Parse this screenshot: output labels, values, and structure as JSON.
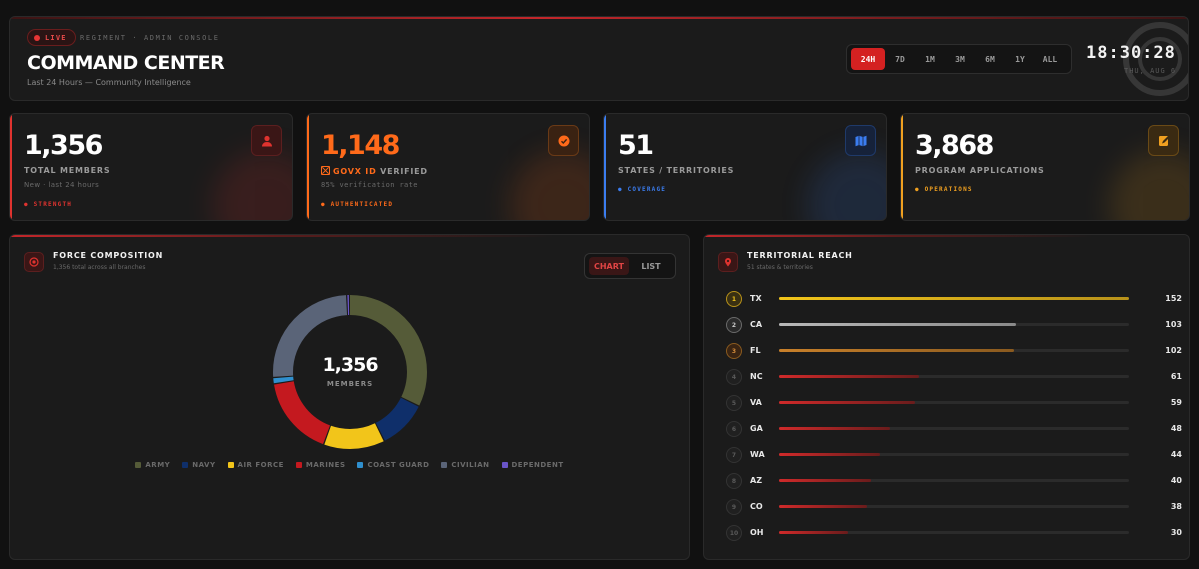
{
  "header": {
    "live_label": "LIVE",
    "breadcrumb": "REGIMENT · ADMIN CONSOLE",
    "title": "COMMAND CENTER",
    "subtitle": "Last 24 Hours — Community Intelligence",
    "ranges": [
      "24H",
      "7D",
      "1M",
      "3M",
      "6M",
      "1Y",
      "ALL"
    ],
    "active_range": "24H",
    "clock": "18:30:28",
    "date": "THU, AUG 6"
  },
  "stats": [
    {
      "value": "1,356",
      "label": "TOTAL MEMBERS",
      "sub": "New · last 24 hours",
      "tag": "● STRENGTH",
      "color": "#e0332f",
      "icon": "users-icon"
    },
    {
      "value": "1,148",
      "label_brand": "GOVX ID",
      "label": "VERIFIED",
      "sub": "85% verification rate",
      "tag": "● AUTHENTICATED",
      "color": "#ff6a1a",
      "icon": "verified-badge-icon"
    },
    {
      "value": "51",
      "label": "STATES / TERRITORIES",
      "sub": "",
      "tag": "● COVERAGE",
      "color": "#3b7df0",
      "icon": "map-icon"
    },
    {
      "value": "3,868",
      "label": "PROGRAM APPLICATIONS",
      "sub": "",
      "tag": "● OPERATIONS",
      "color": "#f0a020",
      "icon": "edit-doc-icon"
    }
  ],
  "force": {
    "title": "FORCE COMPOSITION",
    "subtitle": "1,356 total across all branches",
    "toggle": [
      "CHART",
      "LIST"
    ],
    "center_value": "1,356",
    "center_label": "MEMBERS",
    "legend": [
      {
        "name": "ARMY",
        "color": "#555b38"
      },
      {
        "name": "NAVY",
        "color": "#0f2f6a"
      },
      {
        "name": "AIR FORCE",
        "color": "#f2c51a"
      },
      {
        "name": "MARINES",
        "color": "#c4191f"
      },
      {
        "name": "COAST GUARD",
        "color": "#2f8fce"
      },
      {
        "name": "CIVILIAN",
        "color": "#5a6478"
      },
      {
        "name": "DEPENDENT",
        "color": "#6a55c8"
      }
    ]
  },
  "chart_data": {
    "type": "pie",
    "title": "",
    "categories": [
      "ARMY",
      "NAVY",
      "AIR FORCE",
      "MARINES",
      "COAST GUARD",
      "CIVILIAN",
      "DEPENDENT"
    ],
    "values": [
      440,
      140,
      175,
      230,
      18,
      345,
      8
    ],
    "donut": true
  },
  "territory": {
    "title": "TERRITORIAL REACH",
    "subtitle": "51 states & territories",
    "max": 152,
    "rows": [
      {
        "rank": "1",
        "state": "TX",
        "count": 152,
        "style": "gold"
      },
      {
        "rank": "2",
        "state": "CA",
        "count": 103,
        "style": "silver"
      },
      {
        "rank": "3",
        "state": "FL",
        "count": 102,
        "style": "bronze"
      },
      {
        "rank": "4",
        "state": "NC",
        "count": 61,
        "style": "red"
      },
      {
        "rank": "5",
        "state": "VA",
        "count": 59,
        "style": "red"
      },
      {
        "rank": "6",
        "state": "GA",
        "count": 48,
        "style": "red"
      },
      {
        "rank": "7",
        "state": "WA",
        "count": 44,
        "style": "red"
      },
      {
        "rank": "8",
        "state": "AZ",
        "count": 40,
        "style": "red"
      },
      {
        "rank": "9",
        "state": "CO",
        "count": 38,
        "style": "red"
      },
      {
        "rank": "10",
        "state": "OH",
        "count": 30,
        "style": "red"
      }
    ]
  }
}
